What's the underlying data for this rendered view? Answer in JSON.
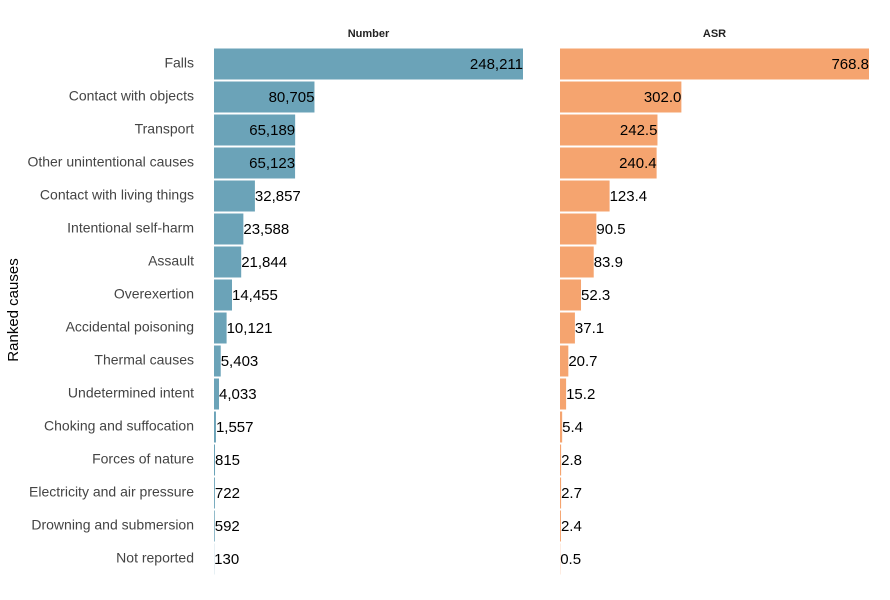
{
  "chart_data": {
    "type": "bar",
    "orientation": "horizontal",
    "y_label": "Ranked causes",
    "categories": [
      "Falls",
      "Contact with objects",
      "Transport",
      "Other unintentional causes",
      "Contact with living things",
      "Intentional self-harm",
      "Assault",
      "Overexertion",
      "Accidental poisoning",
      "Thermal causes",
      "Undetermined intent",
      "Choking and suffocation",
      "Forces of nature",
      "Electricity and air pressure",
      "Drowning and submersion",
      "Not reported"
    ],
    "series": [
      {
        "name": "Number",
        "color": "#6ba3b8",
        "xlim": [
          0,
          248211
        ],
        "values": [
          248211,
          80705,
          65189,
          65123,
          32857,
          23588,
          21844,
          14455,
          10121,
          5403,
          4033,
          1557,
          815,
          722,
          592,
          130
        ],
        "value_labels": [
          "248,211",
          "80,705",
          "65,189",
          "65,123",
          "32,857",
          "23,588",
          "21,844",
          "14,455",
          "10,121",
          "5,403",
          "4,033",
          "1,557",
          "815",
          "722",
          "592",
          "130"
        ]
      },
      {
        "name": "ASR",
        "color": "#f5a46f",
        "xlim": [
          0,
          768.8
        ],
        "values": [
          768.8,
          302.0,
          242.5,
          240.4,
          123.4,
          90.5,
          83.9,
          52.3,
          37.1,
          20.7,
          15.2,
          5.4,
          2.8,
          2.7,
          2.4,
          0.5
        ],
        "value_labels": [
          "768.8",
          "302.0",
          "242.5",
          "240.4",
          "123.4",
          "90.5",
          "83.9",
          "52.3",
          "37.1",
          "20.7",
          "15.2",
          "5.4",
          "2.8",
          "2.7",
          "2.4",
          "0.5"
        ]
      }
    ]
  }
}
